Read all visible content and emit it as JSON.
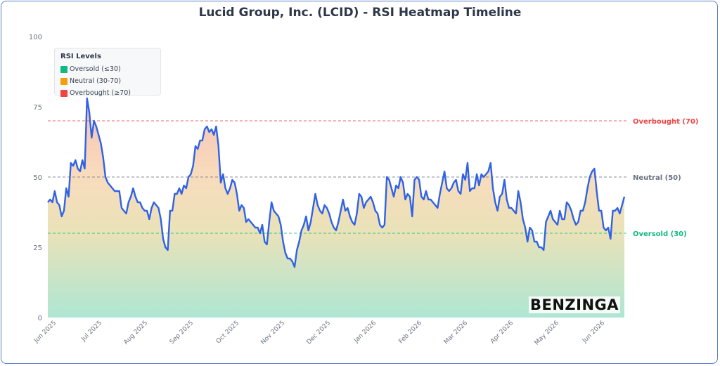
{
  "chart_data": {
    "type": "area",
    "title": "Lucid Group, Inc. (LCID) - RSI Heatmap Timeline",
    "xlabel": "",
    "ylabel": "",
    "ylim": [
      0,
      100
    ],
    "yticks": [
      0,
      25,
      50,
      75,
      100
    ],
    "x_tick_labels": [
      "Jun 2025",
      "Jul 2025",
      "Aug 2025",
      "Sep 2025",
      "Oct 2025",
      "Nov 2025",
      "Dec 2025",
      "Jan 2026",
      "Feb 2026",
      "Mar 2026",
      "Apr 2026",
      "May 2026",
      "Jun 2026"
    ],
    "grid": false,
    "legend": {
      "title": "RSI Levels",
      "placement": "top-left",
      "items": [
        {
          "label": "Oversold (≤30)",
          "color": "#10b981"
        },
        {
          "label": "Neutral (30-70)",
          "color": "#f59e0b"
        },
        {
          "label": "Overbought (≥70)",
          "color": "#ef4444"
        }
      ]
    },
    "reference_lines": [
      {
        "value": 70,
        "label": "Overbought (70)",
        "color": "#ef4444"
      },
      {
        "value": 50,
        "label": "Neutral (50)",
        "color": "#6b7280"
      },
      {
        "value": 30,
        "label": "Oversold (30)",
        "color": "#10b981"
      }
    ],
    "series": [
      {
        "color": "#2f62e6",
        "values": [
          41,
          42,
          41,
          45,
          41,
          40,
          36,
          38,
          46,
          43,
          55,
          54,
          56,
          53,
          52,
          56,
          53,
          78,
          73,
          64,
          70,
          68,
          65,
          62,
          57,
          50,
          48,
          47,
          46,
          45,
          45,
          45,
          39,
          38,
          37,
          41,
          43,
          46,
          43,
          41,
          41,
          39,
          38,
          38,
          35,
          39,
          41,
          40,
          39,
          35,
          28,
          25,
          24,
          38,
          38,
          44,
          44,
          46,
          44,
          47,
          46,
          50,
          51,
          54,
          61,
          60,
          63,
          63,
          67,
          68,
          66,
          67,
          65,
          68,
          61,
          48,
          51,
          46,
          44,
          46,
          49,
          48,
          44,
          38,
          40,
          39,
          34,
          35,
          34,
          33,
          32,
          32,
          30,
          33,
          27,
          26,
          34,
          41,
          38,
          37,
          36,
          33,
          27,
          23,
          21,
          21,
          20,
          18,
          24,
          27,
          31,
          33,
          36,
          31,
          34,
          39,
          44,
          40,
          38,
          37,
          40,
          39,
          37,
          34,
          32,
          31,
          34,
          38,
          42,
          38,
          39,
          36,
          34,
          33,
          37,
          44,
          43,
          39,
          41,
          42,
          43,
          41,
          38,
          37,
          33,
          32,
          33,
          50,
          49,
          46,
          43,
          47,
          46,
          50,
          48,
          42,
          44,
          43,
          36,
          49,
          50,
          49,
          43,
          42,
          45,
          42,
          42,
          41,
          40,
          39,
          44,
          48,
          52,
          46,
          45,
          46,
          48,
          49,
          45,
          44,
          51,
          49,
          55,
          45,
          46,
          46,
          51,
          47,
          51,
          50,
          51,
          52,
          55,
          46,
          41,
          38,
          43,
          44,
          49,
          42,
          39,
          39,
          38,
          37,
          45,
          41,
          35,
          32,
          27,
          32,
          31,
          27,
          27,
          25,
          25,
          24,
          34,
          36,
          38,
          35,
          34,
          33,
          38,
          35,
          35,
          41,
          40,
          38,
          35,
          33,
          34,
          38,
          38,
          41,
          46,
          50,
          52,
          53,
          45,
          38,
          38,
          32,
          31,
          32,
          28,
          38,
          38,
          39,
          37,
          40,
          43
        ]
      }
    ]
  }
}
